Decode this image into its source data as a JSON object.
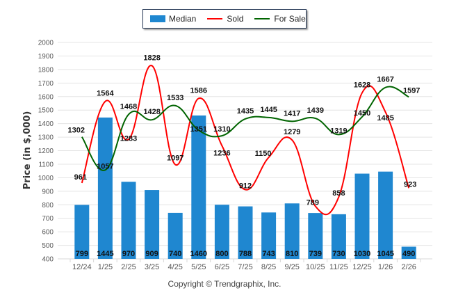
{
  "chart_data": {
    "type": "bar",
    "title": "",
    "xlabel": "",
    "ylabel": "Price (in $,000)",
    "ylim": [
      400,
      2000
    ],
    "yticks": [
      400,
      500,
      600,
      700,
      800,
      900,
      1000,
      1100,
      1200,
      1300,
      1400,
      1500,
      1600,
      1700,
      1800,
      1900,
      2000
    ],
    "grid": true,
    "legend_position": "top-center",
    "categories": [
      "12/24",
      "1/25",
      "2/25",
      "3/25",
      "4/25",
      "5/25",
      "6/25",
      "7/25",
      "8/25",
      "9/25",
      "10/25",
      "11/25",
      "12/25",
      "1/26",
      "2/26"
    ],
    "series": [
      {
        "name": "Median",
        "type": "bar",
        "color": "#1f87d0",
        "values": [
          799,
          1445,
          970,
          909,
          740,
          1460,
          800,
          788,
          743,
          810,
          739,
          730,
          1030,
          1045,
          490
        ]
      },
      {
        "name": "Sold",
        "type": "line",
        "color": "#ff0000",
        "values": [
          961,
          1564,
          1283,
          1828,
          1097,
          1586,
          1236,
          912,
          1150,
          1279,
          789,
          858,
          1628,
          1485,
          923
        ]
      },
      {
        "name": "For Sale",
        "type": "line",
        "color": "#006400",
        "values": [
          1302,
          1057,
          1468,
          1428,
          1533,
          1351,
          1310,
          1435,
          1445,
          1417,
          1439,
          1319,
          1450,
          1667,
          1597
        ]
      }
    ]
  },
  "legend": {
    "items": [
      {
        "label": "Median",
        "color": "#1f87d0",
        "kind": "bar"
      },
      {
        "label": "Sold",
        "color": "#ff0000",
        "kind": "line"
      },
      {
        "label": "For Sale",
        "color": "#006400",
        "kind": "line"
      }
    ]
  },
  "footer": {
    "copyright": "Copyright © Trendgraphix, Inc."
  }
}
